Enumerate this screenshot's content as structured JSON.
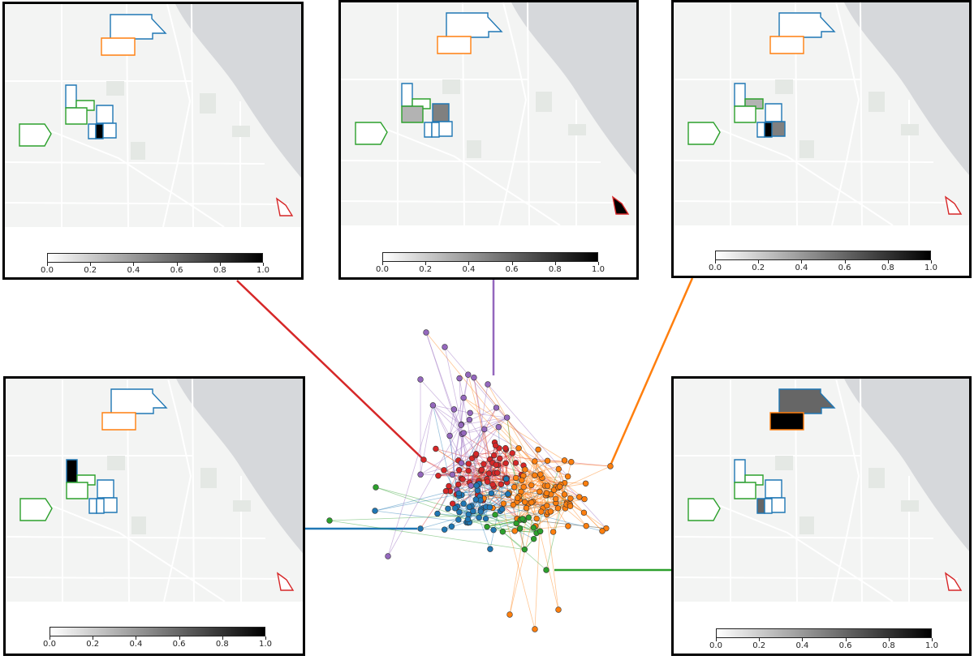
{
  "colors": {
    "red": "#d62728",
    "purple": "#9467bd",
    "orange": "#ff7f0e",
    "blue": "#1f77b4",
    "green": "#2ca02c",
    "land": "#f3f4f3",
    "water": "#d6d8db",
    "street": "#ffffff"
  },
  "colorbar": {
    "ticks": [
      "0.0",
      "0.2",
      "0.4",
      "0.6",
      "0.8",
      "1.0"
    ],
    "min": 0,
    "max": 1
  },
  "panels": [
    {
      "id": "red",
      "color": "red",
      "highlights": {
        "b4": 1.0
      }
    },
    {
      "id": "purple",
      "color": "purple",
      "highlights": {
        "b1": 0.5,
        "g1": 0.3,
        "r1": 1.0
      }
    },
    {
      "id": "orange",
      "color": "orange",
      "highlights": {
        "g0": 0.3,
        "b2": 0.5,
        "b4": 1.0
      }
    },
    {
      "id": "blue",
      "color": "blue",
      "highlights": {
        "b0": 1.0
      }
    },
    {
      "id": "green",
      "color": "green",
      "highlights": {
        "B": 0.6,
        "O": 1.0,
        "b3": 0.6
      }
    }
  ]
}
